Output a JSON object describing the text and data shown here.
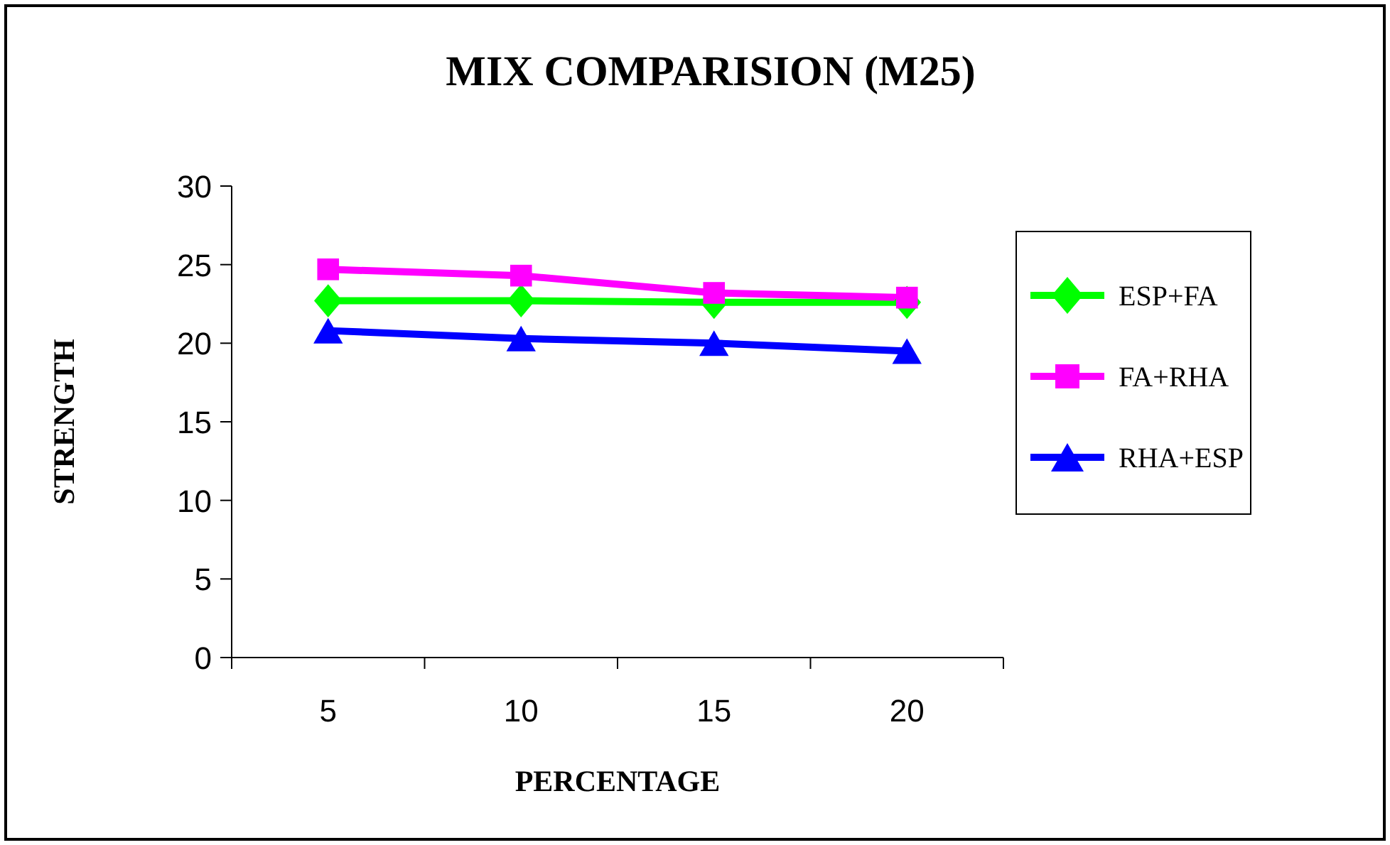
{
  "chart_data": {
    "type": "line",
    "title": "MIX COMPARISION (M25)",
    "xlabel": "PERCENTAGE",
    "ylabel": "STRENGTH",
    "categories": [
      "5",
      "10",
      "15",
      "20"
    ],
    "ylim": [
      0,
      30
    ],
    "yticks": [
      0,
      5,
      10,
      15,
      20,
      25,
      30
    ],
    "legend": "right",
    "grid": false,
    "series": [
      {
        "name": "ESP+FA",
        "color": "#00ff00",
        "marker": "diamond",
        "values": [
          22.7,
          22.7,
          22.6,
          22.6
        ]
      },
      {
        "name": "FA+RHA",
        "color": "#ff00ff",
        "marker": "square",
        "values": [
          24.7,
          24.3,
          23.2,
          22.9
        ]
      },
      {
        "name": "RHA+ESP",
        "color": "#0000ff",
        "marker": "triangle",
        "values": [
          20.8,
          20.3,
          20.0,
          19.5
        ]
      }
    ]
  }
}
